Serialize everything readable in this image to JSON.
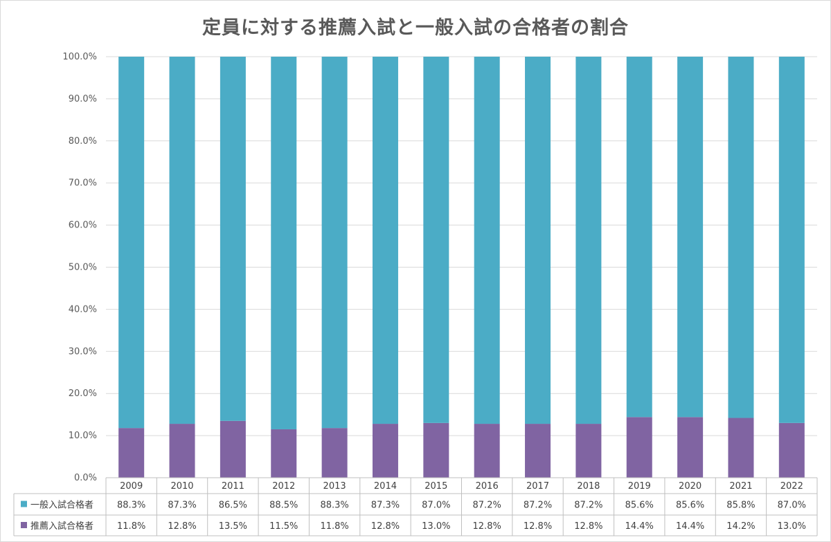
{
  "chart_data": {
    "type": "bar",
    "stacked": true,
    "title": "定員に対する推薦入試と一般入試の合格者の割合",
    "categories": [
      "2009",
      "2010",
      "2011",
      "2012",
      "2013",
      "2014",
      "2015",
      "2016",
      "2017",
      "2018",
      "2019",
      "2020",
      "2021",
      "2022"
    ],
    "series": [
      {
        "name": "推薦入試合格者",
        "color": "#8064a2",
        "values": [
          11.8,
          12.8,
          13.5,
          11.5,
          11.8,
          12.8,
          13.0,
          12.8,
          12.8,
          12.8,
          14.4,
          14.4,
          14.2,
          13.0
        ],
        "labels": [
          "11.8%",
          "12.8%",
          "13.5%",
          "11.5%",
          "11.8%",
          "12.8%",
          "13.0%",
          "12.8%",
          "12.8%",
          "12.8%",
          "14.4%",
          "14.4%",
          "14.2%",
          "13.0%"
        ]
      },
      {
        "name": "一般入試合格者",
        "color": "#4bacc6",
        "values": [
          88.3,
          87.3,
          86.5,
          88.5,
          88.3,
          87.3,
          87.0,
          87.2,
          87.2,
          87.2,
          85.6,
          85.6,
          85.8,
          87.0
        ],
        "labels": [
          "88.3%",
          "87.3%",
          "86.5%",
          "88.5%",
          "88.3%",
          "87.3%",
          "87.0%",
          "87.2%",
          "87.2%",
          "87.2%",
          "85.6%",
          "85.6%",
          "85.8%",
          "87.0%"
        ]
      }
    ],
    "ylim": [
      0,
      100
    ],
    "yticks": [
      "0.0%",
      "10.0%",
      "20.0%",
      "30.0%",
      "40.0%",
      "50.0%",
      "60.0%",
      "70.0%",
      "80.0%",
      "90.0%",
      "100.0%"
    ],
    "grid": true,
    "legend": "data-table",
    "table_rows": [
      "一般入試合格者",
      "推薦入試合格者"
    ]
  }
}
